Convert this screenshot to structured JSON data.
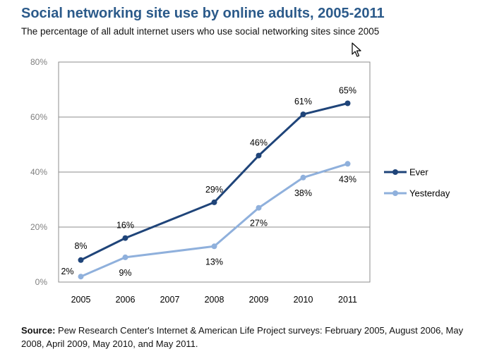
{
  "header": {
    "title": "Social networking site use by online adults, 2005-2011",
    "subtitle": "The percentage of all adult internet users who use social networking sites since 2005"
  },
  "source": {
    "label": "Source:",
    "text": "Pew Research Center's Internet & American Life Project surveys: February 2005, August 2006, May 2008, April 2009, May 2010, and May 2011."
  },
  "chart_data": {
    "type": "line",
    "title": "Social networking site use by online adults, 2005-2011",
    "subtitle": "The percentage of all adult internet users who use social networking sites since 2005",
    "xlabel": "",
    "ylabel": "",
    "x": [
      "2005",
      "2006",
      "2007",
      "2008",
      "2009",
      "2010",
      "2011"
    ],
    "ylim": [
      0,
      80
    ],
    "yticks": [
      0,
      20,
      40,
      60,
      80
    ],
    "ytick_labels": [
      "0%",
      "20%",
      "40%",
      "60%",
      "80%"
    ],
    "grid": true,
    "legend_position": "right",
    "series": [
      {
        "name": "Ever",
        "color": "#1f4479",
        "points": [
          {
            "x": "2005",
            "y": 8,
            "label": "8%"
          },
          {
            "x": "2006",
            "y": 16,
            "label": "16%"
          },
          {
            "x": "2008",
            "y": 29,
            "label": "29%"
          },
          {
            "x": "2009",
            "y": 46,
            "label": "46%"
          },
          {
            "x": "2010",
            "y": 61,
            "label": "61%"
          },
          {
            "x": "2011",
            "y": 65,
            "label": "65%"
          }
        ]
      },
      {
        "name": "Yesterday",
        "color": "#8fb0dc",
        "points": [
          {
            "x": "2005",
            "y": 2,
            "label": "2%"
          },
          {
            "x": "2006",
            "y": 9,
            "label": "9%"
          },
          {
            "x": "2008",
            "y": 13,
            "label": "13%"
          },
          {
            "x": "2009",
            "y": 27,
            "label": "27%"
          },
          {
            "x": "2010",
            "y": 38,
            "label": "38%"
          },
          {
            "x": "2011",
            "y": 43,
            "label": "43%"
          }
        ]
      }
    ]
  }
}
